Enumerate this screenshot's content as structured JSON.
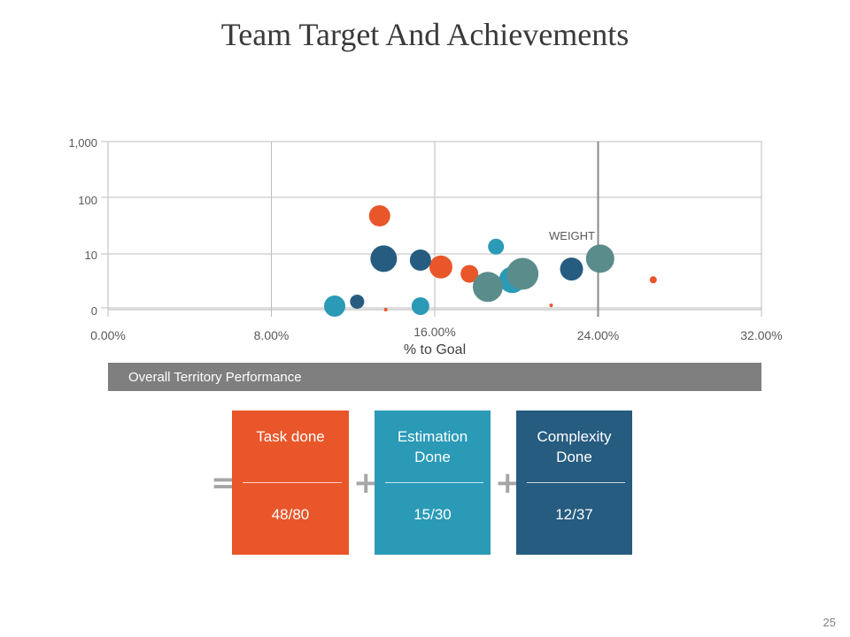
{
  "slide": {
    "title": "Team Target And Achievements",
    "page_number": "25"
  },
  "chart_data": {
    "type": "scatter",
    "bubble": true,
    "xlabel": "% to Goal",
    "x_ticks": [
      "0.00%",
      "8.00%",
      "16.00%",
      "24.00%",
      "32.00%"
    ],
    "xlim": [
      0,
      32
    ],
    "ylabel": "",
    "y_scale": "log",
    "y_ticks": [
      "0",
      "10",
      "100",
      "1,000"
    ],
    "annotations": [
      {
        "text": "WEIGHT",
        "x": 22.8,
        "y": 15
      }
    ],
    "grid": true,
    "series": [
      {
        "color": "#e8562a",
        "points": [
          {
            "x": 13.3,
            "y": 50,
            "size": 12
          },
          {
            "x": 16.3,
            "y": 6,
            "size": 13
          },
          {
            "x": 17.7,
            "y": 4.5,
            "size": 10
          },
          {
            "x": 26.7,
            "y": 3.5,
            "size": 4
          },
          {
            "x": 13.6,
            "y": 1.0,
            "size": 2
          },
          {
            "x": 19.5,
            "y": 2.6,
            "size": 2
          },
          {
            "x": 21.7,
            "y": 1.2,
            "size": 2
          }
        ]
      },
      {
        "color": "#2a9ab7",
        "points": [
          {
            "x": 11.1,
            "y": 0.8,
            "size": 12
          },
          {
            "x": 15.3,
            "y": 0.8,
            "size": 10
          },
          {
            "x": 19.0,
            "y": 14,
            "size": 9
          },
          {
            "x": 19.8,
            "y": 3.5,
            "size": 15
          }
        ]
      },
      {
        "color": "#265c80",
        "points": [
          {
            "x": 12.2,
            "y": 1.4,
            "size": 8
          },
          {
            "x": 13.5,
            "y": 8.5,
            "size": 15
          },
          {
            "x": 15.3,
            "y": 8,
            "size": 12
          },
          {
            "x": 22.7,
            "y": 5.5,
            "size": 13
          }
        ]
      },
      {
        "color": "#5b8c8c",
        "points": [
          {
            "x": 18.6,
            "y": 2.6,
            "size": 17
          },
          {
            "x": 20.3,
            "y": 4.5,
            "size": 18
          },
          {
            "x": 24.1,
            "y": 8.5,
            "size": 16
          }
        ]
      }
    ]
  },
  "banner": {
    "label": "Overall Territory Performance"
  },
  "operators": {
    "equals": "=",
    "plus1": "+",
    "plus2": "+"
  },
  "cards": [
    {
      "label": "Task done",
      "value": "48/80",
      "color": "#e8562a"
    },
    {
      "label": "Estimation\nDone",
      "value": "15/30",
      "color": "#2a9ab7"
    },
    {
      "label": "Complexity\nDone",
      "value": "12/37",
      "color": "#265c80"
    }
  ]
}
